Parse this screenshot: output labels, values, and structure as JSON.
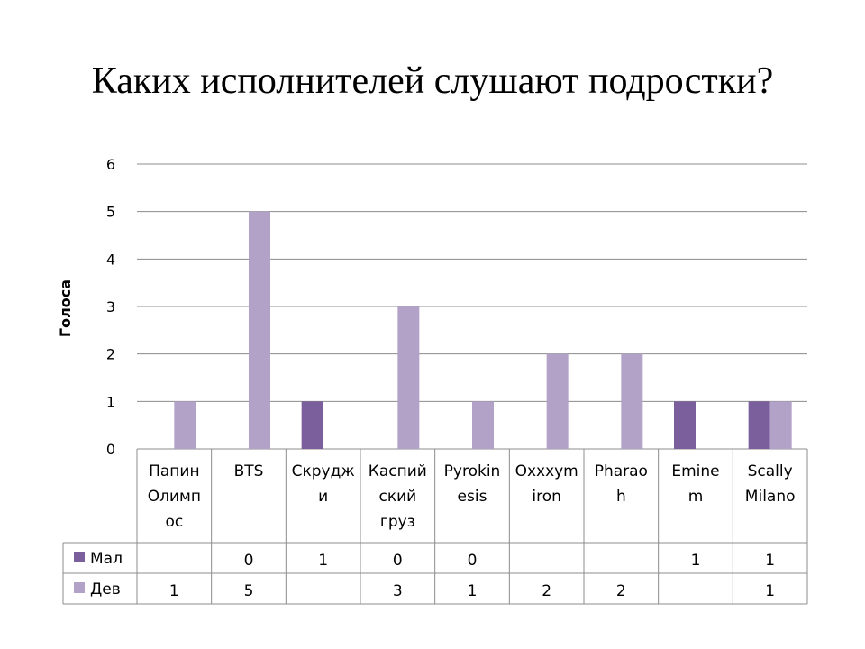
{
  "slide": {
    "title": "Каких исполнителей слушают подростки?"
  },
  "chart_data": {
    "type": "bar",
    "categories": [
      [
        "Папин",
        "Олимп",
        "ос"
      ],
      [
        "BTS"
      ],
      [
        "Скрудж",
        "и"
      ],
      [
        "Каспий",
        "ский",
        "груз"
      ],
      [
        "Pyrokin",
        "esis"
      ],
      [
        "Oxxxym",
        "iron"
      ],
      [
        "Pharao",
        "h"
      ],
      [
        "Emine",
        "m"
      ],
      [
        "Scally",
        "Milano"
      ]
    ],
    "series": [
      {
        "name": "Мал",
        "color": "#7b5f9c",
        "values": [
          null,
          0,
          1,
          0,
          0,
          null,
          null,
          1,
          1
        ],
        "labels": [
          "",
          "0",
          "1",
          "0",
          "0",
          "",
          "",
          "1",
          "1"
        ]
      },
      {
        "name": "Дев",
        "color": "#b3a2c7",
        "values": [
          1,
          5,
          null,
          3,
          1,
          2,
          2,
          null,
          1
        ],
        "labels": [
          "1",
          "5",
          "",
          "3",
          "1",
          "2",
          "2",
          "",
          "1"
        ]
      }
    ],
    "ylabel": "Голоса",
    "ylim": [
      0,
      6
    ],
    "yticks": [
      "0",
      "1",
      "2",
      "3",
      "4",
      "5",
      "6"
    ],
    "grid": true,
    "legend": "data-table"
  }
}
